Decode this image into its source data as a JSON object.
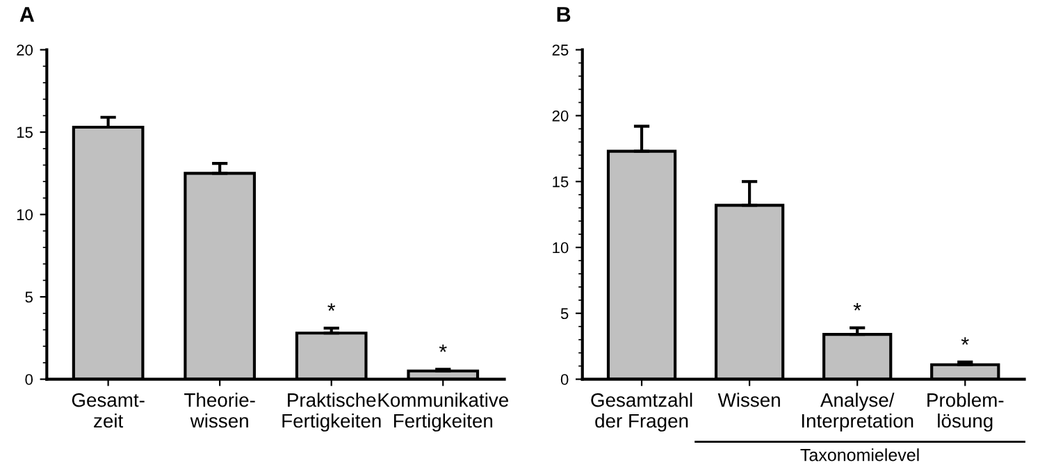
{
  "chart_data": [
    {
      "type": "bar",
      "title": "A",
      "categories": [
        "Gesamt-\nzeit",
        "Theorie-\nwissen",
        "Praktische\nFertigkeiten",
        "Kommunikative\nFertigkeiten"
      ],
      "values": [
        15.3,
        12.5,
        2.8,
        0.5
      ],
      "color": "#c0c0c0",
      "errors": [
        [
          15.3,
          15.9
        ],
        [
          12.5,
          13.1
        ],
        [
          2.8,
          3.1
        ],
        [
          0.5,
          0.6
        ]
      ],
      "ylim": [
        0,
        20
      ],
      "yticks": [
        0,
        5,
        10,
        15,
        20
      ],
      "grid": false,
      "annotations": [
        {
          "text": "*",
          "x": "Praktische\nFertigkeiten",
          "y": 3.1
        },
        {
          "text": "*",
          "x": "Kommunikative\nFertigkeiten",
          "y": 0.6
        }
      ]
    },
    {
      "type": "bar",
      "title": "B",
      "categories": [
        "Gesamtzahl\nder Fragen",
        "Wissen",
        "Analyse/\nInterpretation",
        "Problem-\nlösung"
      ],
      "values": [
        17.3,
        13.2,
        3.4,
        1.1
      ],
      "color": "#c0c0c0",
      "errors": [
        [
          17.3,
          19.2
        ],
        [
          13.2,
          15.0
        ],
        [
          3.4,
          3.9
        ],
        [
          1.1,
          1.3
        ]
      ],
      "ylim": [
        0,
        25
      ],
      "yticks": [
        0,
        5,
        10,
        15,
        20,
        25
      ],
      "grid": false,
      "annotations": [
        {
          "text": "*",
          "x": "Analyse/\nInterpretation",
          "y": 3.9
        },
        {
          "text": "*",
          "x": "Problem-\nlösung",
          "y": 1.3
        },
        "Taxonomielevel"
      ]
    }
  ]
}
